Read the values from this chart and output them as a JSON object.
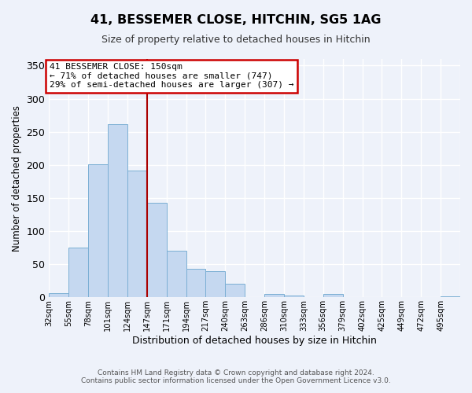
{
  "title": "41, BESSEMER CLOSE, HITCHIN, SG5 1AG",
  "subtitle": "Size of property relative to detached houses in Hitchin",
  "xlabel": "Distribution of detached houses by size in Hitchin",
  "ylabel": "Number of detached properties",
  "bar_color": "#c5d8f0",
  "bar_edge_color": "#7bafd4",
  "bin_labels": [
    "32sqm",
    "55sqm",
    "78sqm",
    "101sqm",
    "124sqm",
    "147sqm",
    "171sqm",
    "194sqm",
    "217sqm",
    "240sqm",
    "263sqm",
    "286sqm",
    "310sqm",
    "333sqm",
    "356sqm",
    "379sqm",
    "402sqm",
    "425sqm",
    "449sqm",
    "472sqm",
    "495sqm"
  ],
  "bar_heights": [
    6,
    75,
    201,
    262,
    191,
    143,
    70,
    43,
    40,
    20,
    0,
    5,
    3,
    0,
    5,
    0,
    0,
    0,
    0,
    0,
    2
  ],
  "ylim": [
    0,
    360
  ],
  "yticks": [
    0,
    50,
    100,
    150,
    200,
    250,
    300,
    350
  ],
  "marker_bin_index": 5,
  "marker_label": "41 BESSEMER CLOSE: 150sqm",
  "annotation_line1": "← 71% of detached houses are smaller (747)",
  "annotation_line2": "29% of semi-detached houses are larger (307) →",
  "annotation_box_color": "#ffffff",
  "annotation_box_edge_color": "#cc0000",
  "marker_line_color": "#aa0000",
  "footer_line1": "Contains HM Land Registry data © Crown copyright and database right 2024.",
  "footer_line2": "Contains public sector information licensed under the Open Government Licence v3.0.",
  "background_color": "#eef2fa",
  "grid_color": "#ffffff",
  "figsize": [
    6.0,
    5.0
  ],
  "dpi": 100
}
